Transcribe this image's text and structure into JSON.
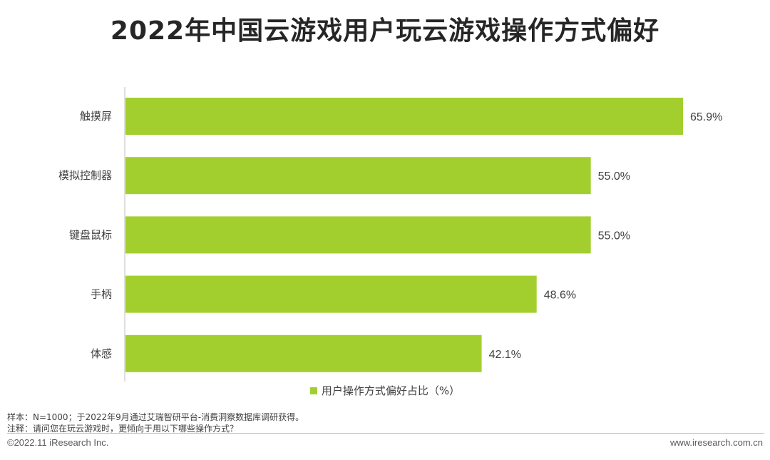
{
  "title": "2022年中国云游戏用户玩云游戏操作方式偏好",
  "chart_data": {
    "type": "bar",
    "orientation": "horizontal",
    "categories": [
      "触摸屏",
      "模拟控制器",
      "键盘鼠标",
      "手柄",
      "体感"
    ],
    "series": [
      {
        "name": "用户操作方式偏好占比（%）",
        "values": [
          65.9,
          55.0,
          55.0,
          48.6,
          42.1
        ]
      }
    ],
    "value_labels": [
      "65.9%",
      "55.0%",
      "55.0%",
      "48.6%",
      "42.1%"
    ],
    "xlim": [
      0,
      70
    ],
    "grid": false,
    "legend_position": "bottom"
  },
  "colors": {
    "bar": "#a3cf2e",
    "axis": "#bfbfbf"
  },
  "legend": {
    "label": "用户操作方式偏好占比（%）"
  },
  "notes": {
    "sample": "样本：N=1000；于2022年9月通过艾瑞智研平台-消费洞察数据库调研获得。",
    "remark": "注释：请问您在玩云游戏时，更倾向于用以下哪些操作方式？"
  },
  "footer": {
    "copyright": "©2022.11 iResearch Inc.",
    "website": "www.iresearch.com.cn"
  }
}
